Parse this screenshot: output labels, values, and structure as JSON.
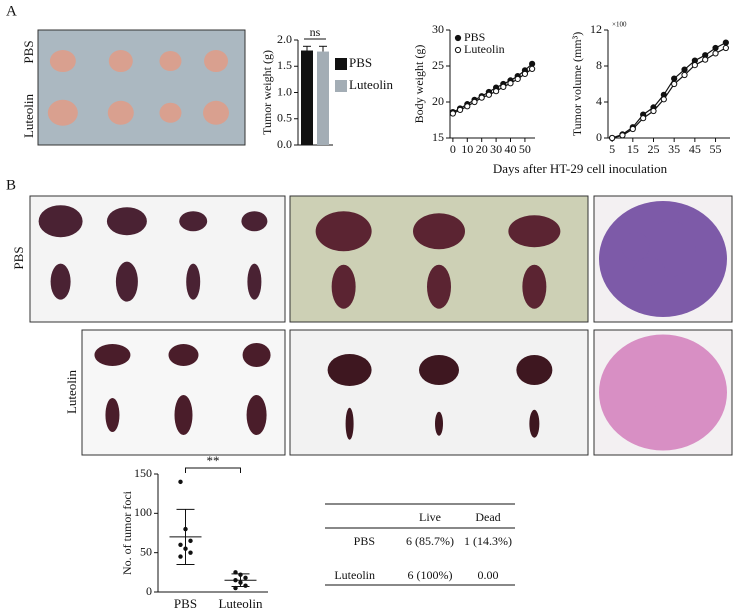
{
  "panel_labels": [
    "A",
    "B"
  ],
  "photo_labels": {
    "a_top": "PBS",
    "a_bottom": "Luteolin",
    "b_top": "PBS",
    "b_bottom": "Luteolin"
  },
  "chart_data": [
    {
      "type": "bar",
      "ylabel": "Tumor weight (g)",
      "annotation": "ns",
      "ylim": [
        0,
        2.0
      ],
      "yticks": [
        {
          "value": 0,
          "label": "0.0"
        },
        {
          "value": 0.5,
          "label": "0.5"
        },
        {
          "value": 1.0,
          "label": "1.0"
        },
        {
          "value": 1.5,
          "label": "1.5"
        },
        {
          "value": 2.0,
          "label": "2.0"
        }
      ],
      "series": [
        {
          "name": "PBS",
          "color": "#111111",
          "values": [
            1.8
          ],
          "errors": [
            0.08
          ]
        },
        {
          "name": "Luteolin",
          "color": "#a3adb5",
          "values": [
            1.78
          ],
          "errors": [
            0.1
          ]
        }
      ],
      "legend": "right"
    },
    {
      "type": "line",
      "ylabel": "Body weight (g)",
      "xlabel": "Days after HT-29 cell inoculation",
      "x": [
        0,
        5,
        10,
        15,
        20,
        25,
        30,
        35,
        40,
        45,
        50,
        55
      ],
      "xlim": [
        -2,
        57
      ],
      "xticks": [
        0,
        10,
        20,
        30,
        40,
        50
      ],
      "ylim": [
        15,
        30
      ],
      "yticks": [
        15,
        20,
        25,
        30
      ],
      "series": [
        {
          "name": "PBS",
          "color": "#111111",
          "marker": "filled",
          "values": [
            18.6,
            19.1,
            19.7,
            20.3,
            20.8,
            21.4,
            22.0,
            22.5,
            23.0,
            23.6,
            24.4,
            25.3
          ]
        },
        {
          "name": "Luteolin",
          "color": "#111111",
          "marker": "open",
          "values": [
            18.4,
            18.9,
            19.4,
            20.0,
            20.6,
            21.0,
            21.5,
            22.1,
            22.6,
            23.2,
            23.9,
            24.6
          ]
        }
      ],
      "legend": "upper left"
    },
    {
      "type": "line",
      "ylabel": "Tumor volume (mm³)",
      "annotation": "×100",
      "x": [
        5,
        10,
        15,
        20,
        25,
        30,
        35,
        40,
        45,
        50,
        55,
        60
      ],
      "xlim": [
        3,
        62
      ],
      "xticks": [
        5,
        15,
        25,
        35,
        45,
        55
      ],
      "ylim": [
        0,
        12
      ],
      "yticks": [
        0,
        4,
        8,
        12
      ],
      "series": [
        {
          "color": "#111111",
          "marker": "filled",
          "values": [
            0,
            0.4,
            1.2,
            2.6,
            3.4,
            4.8,
            6.6,
            7.6,
            8.6,
            9.2,
            10.0,
            10.6
          ]
        },
        {
          "color": "#111111",
          "marker": "open",
          "values": [
            0,
            0.3,
            1.0,
            2.2,
            3.0,
            4.3,
            6.0,
            7.0,
            8.1,
            8.7,
            9.4,
            10.0
          ]
        }
      ]
    },
    {
      "type": "scatter",
      "ylabel": "No. of tumor foci",
      "annotation": "**",
      "categories": [
        "PBS",
        "Luteolin"
      ],
      "values": [
        [
          140,
          80,
          65,
          60,
          55,
          50,
          45
        ],
        [
          25,
          22,
          18,
          15,
          12,
          8,
          5
        ]
      ],
      "means": [
        70,
        15
      ],
      "sd": [
        35,
        8
      ],
      "ylim": [
        0,
        150
      ],
      "yticks": [
        0,
        50,
        100,
        150
      ]
    }
  ],
  "table": {
    "header": [
      "Live",
      "Dead"
    ],
    "rows": [
      [
        "PBS",
        "6 (85.7%)",
        "1 (14.3%)"
      ],
      [
        "Luteolin",
        "6 (100%)",
        "0.00"
      ]
    ]
  }
}
